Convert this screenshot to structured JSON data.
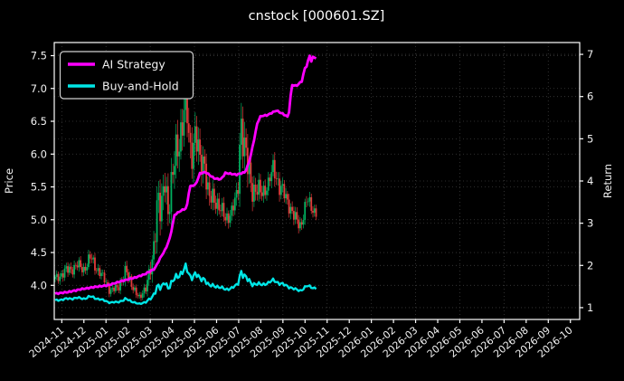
{
  "title": "cnstock [000601.SZ]",
  "legend": {
    "items": [
      {
        "label": "AI Strategy",
        "color": "#ff00ff"
      },
      {
        "label": "Buy-and-Hold",
        "color": "#00e6e6"
      }
    ]
  },
  "axes": {
    "left_label": "Price",
    "right_label": "Return"
  },
  "colors": {
    "background": "#000000",
    "text": "#f2f2f2",
    "spine": "#ffffff",
    "grid": "#3c3c3c",
    "ai_strategy": "#ff00ff",
    "buy_hold": "#00e6e6",
    "candle_up": "#00b060",
    "candle_down": "#e23a3a"
  },
  "chart_data": {
    "type": "candlestick+line",
    "title": "cnstock [000601.SZ]",
    "legend_position": "upper left",
    "grid": "dotted gray; vertical line every 2 months, horizontal at price and return ticks",
    "x_axis": {
      "label": "",
      "tick_labels": [
        "2024-11",
        "2024-12",
        "2025-01",
        "2025-02",
        "2025-03",
        "2025-04",
        "2025-05",
        "2025-06",
        "2025-07",
        "2025-08",
        "2025-09",
        "2025-10",
        "2025-11",
        "2025-12",
        "2026-01",
        "2026-02",
        "2026-03",
        "2026-04",
        "2026-05",
        "2026-06",
        "2026-07",
        "2026-08",
        "2026-09",
        "2026-10"
      ],
      "range_months": [
        -0.34,
        23.42
      ],
      "note": "month index 0 = 2024-11; plotted data ends near month 11.5 (mid Nov 2025)"
    },
    "left_axis": {
      "label": "Price",
      "ticks": [
        4.0,
        4.5,
        5.0,
        5.5,
        6.0,
        6.5,
        7.0,
        7.5
      ],
      "tick_labels": [
        "4.0",
        "4.5",
        "5.0",
        "5.5",
        "6.0",
        "6.5",
        "7.0",
        "7.5"
      ],
      "range": [
        3.48,
        7.7
      ]
    },
    "right_axis": {
      "label": "Return",
      "ticks": [
        1,
        2,
        3,
        4,
        5,
        6,
        7
      ],
      "tick_labels": [
        "1",
        "2",
        "3",
        "4",
        "5",
        "6",
        "7"
      ],
      "range": [
        0.72,
        7.28
      ]
    },
    "series": [
      {
        "name": "AI Strategy",
        "type": "line",
        "axis": "right",
        "color": "#ff00ff",
        "points_month_return": [
          [
            -0.3,
            1.33
          ],
          [
            0.3,
            1.37
          ],
          [
            0.9,
            1.44
          ],
          [
            1.5,
            1.49
          ],
          [
            2.1,
            1.53
          ],
          [
            2.7,
            1.63
          ],
          [
            3.3,
            1.71
          ],
          [
            3.75,
            1.79
          ],
          [
            4.2,
            1.92
          ],
          [
            4.5,
            2.22
          ],
          [
            4.7,
            2.39
          ],
          [
            4.9,
            2.67
          ],
          [
            5.1,
            3.2
          ],
          [
            5.4,
            3.3
          ],
          [
            5.65,
            3.36
          ],
          [
            5.78,
            3.87
          ],
          [
            6.05,
            3.91
          ],
          [
            6.25,
            4.18
          ],
          [
            6.5,
            4.21
          ],
          [
            6.9,
            4.06
          ],
          [
            7.2,
            4.04
          ],
          [
            7.4,
            4.19
          ],
          [
            7.9,
            4.15
          ],
          [
            8.3,
            4.21
          ],
          [
            8.5,
            4.5
          ],
          [
            8.65,
            4.86
          ],
          [
            8.85,
            5.39
          ],
          [
            9.0,
            5.54
          ],
          [
            9.3,
            5.56
          ],
          [
            9.7,
            5.67
          ],
          [
            10.1,
            5.56
          ],
          [
            10.25,
            5.5
          ],
          [
            10.4,
            6.28
          ],
          [
            10.6,
            6.25
          ],
          [
            10.85,
            6.36
          ],
          [
            11.0,
            6.68
          ],
          [
            11.1,
            6.74
          ],
          [
            11.2,
            7.0
          ],
          [
            11.28,
            6.83
          ],
          [
            11.38,
            6.96
          ],
          [
            11.5,
            6.9
          ]
        ]
      },
      {
        "name": "Buy-and-Hold",
        "type": "line",
        "axis": "right",
        "color": "#00e6e6",
        "derived": "candle close / base_price",
        "base_price": 3.5,
        "start_return": 1.17,
        "peak_return": 1.97,
        "end_return": 1.46
      },
      {
        "name": "000601.SZ daily OHLC",
        "type": "candlestick",
        "axis": "left",
        "up_color": "#00b060",
        "down_color": "#e23a3a",
        "candle_count": 165,
        "data_end_month": 11.5,
        "close_keyframes_month_price_vol": [
          [
            -0.3,
            4.1,
            0.12
          ],
          [
            0.2,
            4.22,
            0.15
          ],
          [
            0.7,
            4.3,
            0.15
          ],
          [
            1.0,
            4.25,
            0.15
          ],
          [
            1.3,
            4.42,
            0.18
          ],
          [
            1.6,
            4.25,
            0.15
          ],
          [
            1.9,
            4.1,
            0.12
          ],
          [
            2.2,
            3.92,
            0.12
          ],
          [
            2.5,
            3.95,
            0.12
          ],
          [
            2.9,
            4.2,
            0.2
          ],
          [
            3.2,
            4.0,
            0.12
          ],
          [
            3.5,
            3.78,
            0.1
          ],
          [
            3.8,
            4.0,
            0.15
          ],
          [
            4.1,
            4.3,
            0.3
          ],
          [
            4.35,
            5.5,
            0.55
          ],
          [
            4.5,
            5.0,
            0.5
          ],
          [
            4.65,
            5.6,
            0.5
          ],
          [
            4.8,
            5.2,
            0.45
          ],
          [
            5.0,
            5.65,
            0.5
          ],
          [
            5.3,
            6.2,
            0.55
          ],
          [
            5.6,
            6.85,
            0.5
          ],
          [
            5.8,
            6.0,
            0.55
          ],
          [
            6.05,
            6.35,
            0.5
          ],
          [
            6.25,
            5.8,
            0.45
          ],
          [
            6.45,
            5.95,
            0.35
          ],
          [
            6.65,
            5.3,
            0.35
          ],
          [
            7.0,
            5.3,
            0.25
          ],
          [
            7.4,
            5.0,
            0.2
          ],
          [
            7.7,
            5.15,
            0.2
          ],
          [
            7.95,
            5.35,
            0.3
          ],
          [
            8.1,
            6.6,
            0.6
          ],
          [
            8.3,
            5.95,
            0.55
          ],
          [
            8.6,
            5.5,
            0.35
          ],
          [
            9.0,
            5.4,
            0.25
          ],
          [
            9.35,
            5.55,
            0.2
          ],
          [
            9.6,
            5.8,
            0.3
          ],
          [
            9.85,
            5.5,
            0.25
          ],
          [
            10.2,
            5.3,
            0.2
          ],
          [
            10.55,
            5.0,
            0.2
          ],
          [
            10.8,
            4.92,
            0.18
          ],
          [
            11.1,
            5.3,
            0.2
          ],
          [
            11.3,
            5.2,
            0.18
          ],
          [
            11.5,
            5.1,
            0.15
          ]
        ]
      }
    ]
  }
}
